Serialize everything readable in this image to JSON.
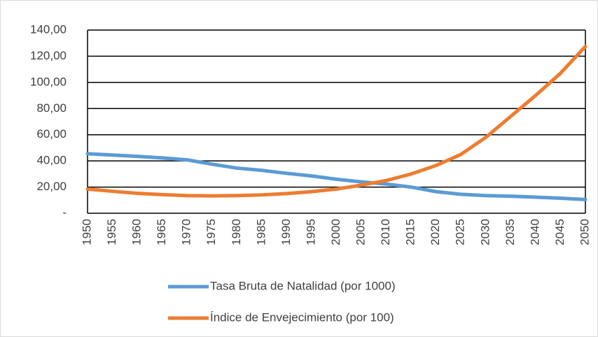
{
  "chart_data": {
    "type": "line",
    "categories": [
      "1950",
      "1955",
      "1960",
      "1965",
      "1970",
      "1975",
      "1980",
      "1985",
      "1990",
      "1995",
      "2000",
      "2005",
      "2010",
      "2015",
      "2020",
      "2025",
      "2030",
      "2035",
      "2040",
      "2045",
      "2050"
    ],
    "series": [
      {
        "name": "Tasa Bruta de Natalidad (por 1000)",
        "color": "#5b9bd5",
        "values": [
          45.5,
          44.5,
          43.5,
          42.3,
          40.8,
          37.5,
          34.5,
          32.8,
          30.5,
          28.5,
          26.0,
          24.0,
          22.3,
          20.0,
          16.5,
          14.5,
          13.5,
          13.0,
          12.3,
          11.5,
          10.5
        ]
      },
      {
        "name": "Índice de Envejecimiento (por 100)",
        "color": "#ed7d31",
        "values": [
          18.5,
          16.8,
          15.2,
          14.2,
          13.5,
          13.3,
          13.5,
          14.0,
          15.0,
          16.5,
          18.5,
          21.5,
          25.0,
          30.0,
          36.5,
          45.0,
          58.0,
          74.0,
          90.0,
          107.0,
          127.5
        ]
      }
    ],
    "ylim": [
      0,
      140
    ],
    "yticks": [
      {
        "value": 0,
        "label": "-"
      },
      {
        "value": 20,
        "label": "20,00"
      },
      {
        "value": 40,
        "label": "40,00"
      },
      {
        "value": 60,
        "label": "60,00"
      },
      {
        "value": 80,
        "label": "80,00"
      },
      {
        "value": 100,
        "label": "100,00"
      },
      {
        "value": 120,
        "label": "120,00"
      },
      {
        "value": 140,
        "label": "140,00"
      }
    ],
    "grid": true,
    "legend": "bottom"
  }
}
